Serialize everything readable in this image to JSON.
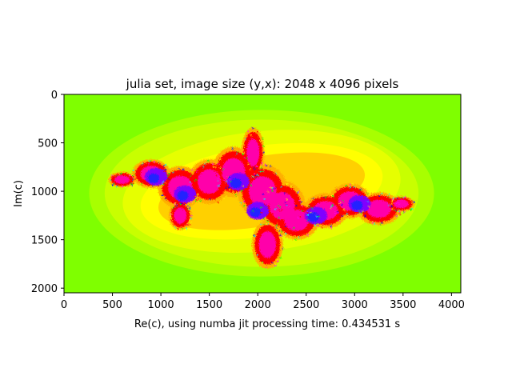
{
  "chart_data": {
    "type": "heatmap",
    "title": "julia set, image size (y,x): 2048 x 4096 pixels",
    "xlabel": "Re(c), using numba jit processing time: 0.434531 s",
    "ylabel": "Im(c)",
    "xlim": [
      0,
      4096
    ],
    "ylim": [
      2048,
      0
    ],
    "xticks": [
      0,
      500,
      1000,
      1500,
      2000,
      2500,
      3000,
      3500,
      4000
    ],
    "yticks": [
      0,
      500,
      1000,
      1500,
      2000
    ],
    "colormap": "prism",
    "colors": {
      "background": "#7fff00",
      "band_light": "#a8ff00",
      "band_yellow": "#ffff00",
      "band_orange": "#ffb000",
      "band_red": "#ff0000",
      "band_magenta": "#ff00aa",
      "band_violet": "#8000ff",
      "band_blue": "#2020ff"
    }
  }
}
